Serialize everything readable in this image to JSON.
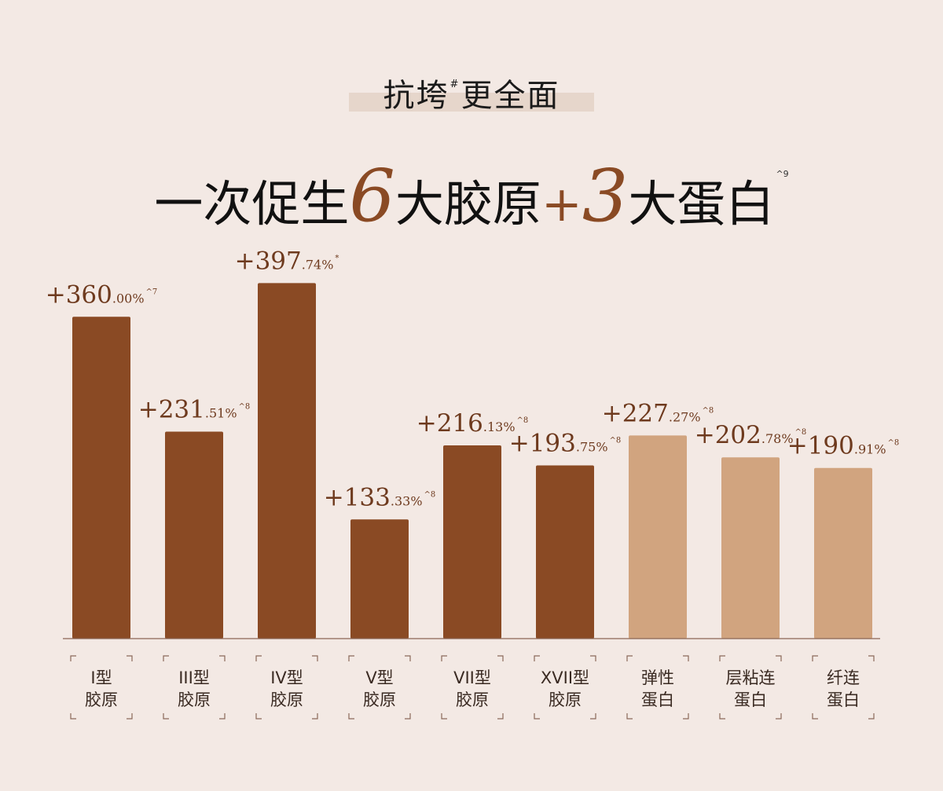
{
  "heading": {
    "subtitle_before": "抗垮",
    "subtitle_mark": "#",
    "subtitle_after": "更全面",
    "line_a": "一次促生",
    "num_a": "6",
    "line_b": "大胶原",
    "plus": "+",
    "num_b": "3",
    "line_c": "大蛋白",
    "footnote": "^9"
  },
  "colors": {
    "background": "#f3e9e4",
    "collagen": "#8a4a24",
    "protein": "#d1a47f",
    "value_text": "#6e3a1e",
    "axis": "#8a6655",
    "label_text": "#3a2a22",
    "bracket": "#8a6a5a"
  },
  "chart_data": {
    "type": "bar",
    "ylim": [
      0,
      420
    ],
    "categories": [
      [
        "I型",
        "胶原"
      ],
      [
        "III型",
        "胶原"
      ],
      [
        "IV型",
        "胶原"
      ],
      [
        "V型",
        "胶原"
      ],
      [
        "VII型",
        "胶原"
      ],
      [
        "XVII型",
        "胶原"
      ],
      [
        "弹性",
        "蛋白"
      ],
      [
        "层粘连",
        "蛋白"
      ],
      [
        "纤连",
        "蛋白"
      ]
    ],
    "values": [
      360.0,
      231.51,
      397.74,
      133.33,
      216.13,
      193.75,
      227.27,
      202.78,
      190.91
    ],
    "value_labels": [
      {
        "plus": "+",
        "int": "360",
        "dec": ".00%",
        "note": "^7"
      },
      {
        "plus": "+",
        "int": "231",
        "dec": ".51%",
        "note": "^8"
      },
      {
        "plus": "+",
        "int": "397",
        "dec": ".74%",
        "note": "*"
      },
      {
        "plus": "+",
        "int": "133",
        "dec": ".33%",
        "note": "^8"
      },
      {
        "plus": "+",
        "int": "216",
        "dec": ".13%",
        "note": "^8"
      },
      {
        "plus": "+",
        "int": "193",
        "dec": ".75%",
        "note": "^8"
      },
      {
        "plus": "+",
        "int": "227",
        "dec": ".27%",
        "note": "^8"
      },
      {
        "plus": "+",
        "int": "202",
        "dec": ".78%",
        "note": "^8"
      },
      {
        "plus": "+",
        "int": "190",
        "dec": ".91%",
        "note": "^8"
      }
    ],
    "groups": [
      "collagen",
      "collagen",
      "collagen",
      "collagen",
      "collagen",
      "collagen",
      "protein",
      "protein",
      "protein"
    ]
  }
}
